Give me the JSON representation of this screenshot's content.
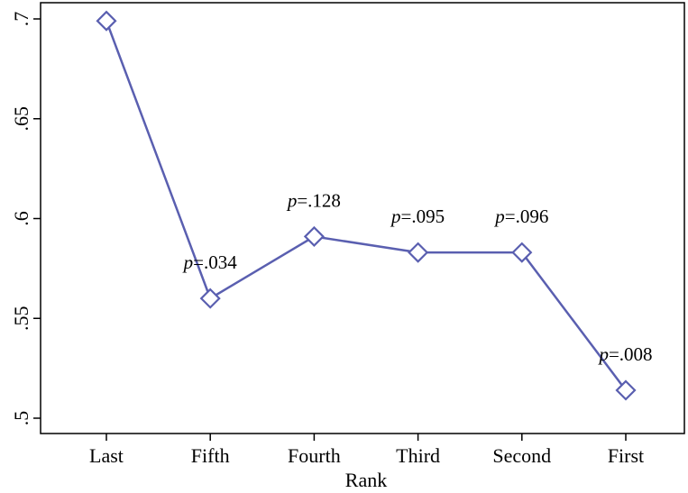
{
  "chart_data": {
    "type": "line",
    "title": "",
    "xlabel": "Rank",
    "ylabel": "",
    "categories": [
      "Last",
      "Fifth",
      "Fourth",
      "Third",
      "Second",
      "First"
    ],
    "values": [
      0.699,
      0.56,
      0.591,
      0.583,
      0.583,
      0.514
    ],
    "ylim": [
      0.5,
      0.7
    ],
    "yticks": [
      {
        "value": 0.5,
        "label": ".5"
      },
      {
        "value": 0.55,
        "label": ".55"
      },
      {
        "value": 0.6,
        "label": ".6"
      },
      {
        "value": 0.65,
        "label": ".65"
      },
      {
        "value": 0.7,
        "label": ".7"
      }
    ],
    "annotations": [
      {
        "category": "Fifth",
        "prefix": "p",
        "text": "=.034"
      },
      {
        "category": "Fourth",
        "prefix": "p",
        "text": "=.128"
      },
      {
        "category": "Third",
        "prefix": "p",
        "text": "=.095"
      },
      {
        "category": "Second",
        "prefix": "p",
        "text": "=.096"
      },
      {
        "category": "First",
        "prefix": "p",
        "text": "=.008"
      }
    ],
    "marker": "hollow-diamond",
    "line_color": "#5a5fb0",
    "grid": false,
    "legend": "none"
  }
}
